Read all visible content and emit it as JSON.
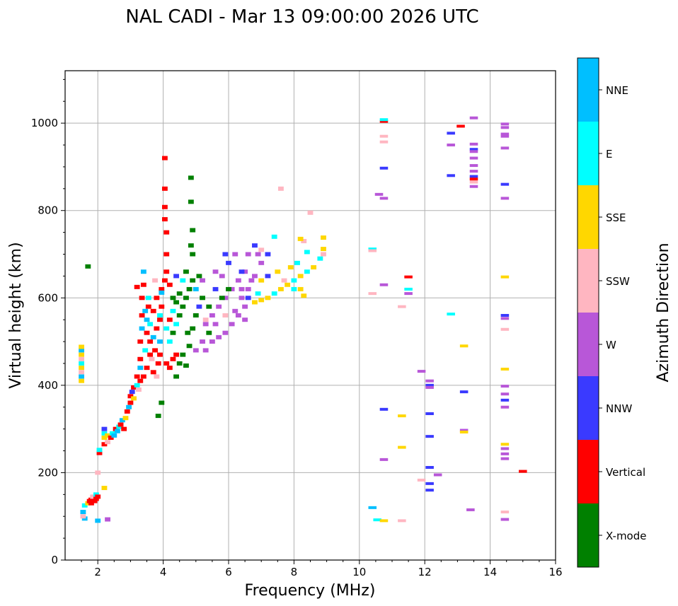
{
  "chart_data": {
    "type": "scatter",
    "title": "NAL CADI - Mar 13 09:00:00 2026 UTC",
    "xlabel": "Frequency (MHz)",
    "ylabel": "Virtual height (km)",
    "xlim": [
      1,
      16
    ],
    "ylim": [
      0,
      1120
    ],
    "xticks": [
      2,
      4,
      6,
      8,
      10,
      12,
      14,
      16
    ],
    "yticks": [
      0,
      200,
      400,
      600,
      800,
      1000
    ],
    "grid": true,
    "colorbar": {
      "label": "Azimuth Direction",
      "categories": [
        "X-mode",
        "Vertical",
        "NNW",
        "W",
        "SSW",
        "SSE",
        "E",
        "NNE"
      ],
      "colors": [
        "#008000",
        "#ff0000",
        "#3a3aff",
        "#b857d8",
        "#ffb6c1",
        "#ffd700",
        "#00ffff",
        "#00bfff"
      ]
    },
    "points_format": [
      "frequency_mhz",
      "height_km",
      "direction_index"
    ],
    "points": [
      [
        1.5,
        410,
        5
      ],
      [
        1.5,
        420,
        7
      ],
      [
        1.5,
        430,
        4
      ],
      [
        1.5,
        440,
        5
      ],
      [
        1.5,
        450,
        6
      ],
      [
        1.5,
        460,
        4
      ],
      [
        1.5,
        470,
        5
      ],
      [
        1.5,
        480,
        7
      ],
      [
        1.5,
        488,
        5
      ],
      [
        1.55,
        110,
        7
      ],
      [
        1.6,
        125,
        6
      ],
      [
        1.6,
        95,
        7
      ],
      [
        1.55,
        100,
        4
      ],
      [
        1.7,
        130,
        5
      ],
      [
        1.75,
        135,
        1
      ],
      [
        1.8,
        138,
        1
      ],
      [
        1.85,
        140,
        1
      ],
      [
        1.9,
        135,
        1
      ],
      [
        1.85,
        145,
        4
      ],
      [
        1.95,
        150,
        6
      ],
      [
        1.95,
        140,
        1
      ],
      [
        2.0,
        145,
        1
      ],
      [
        1.8,
        130,
        1
      ],
      [
        2.0,
        90,
        7
      ],
      [
        2.3,
        93,
        3
      ],
      [
        2.2,
        165,
        5
      ],
      [
        2.0,
        200,
        4
      ],
      [
        1.7,
        672,
        0
      ],
      [
        2.05,
        245,
        1
      ],
      [
        2.05,
        252,
        6
      ],
      [
        2.2,
        265,
        1
      ],
      [
        2.2,
        280,
        5
      ],
      [
        2.2,
        290,
        6
      ],
      [
        2.2,
        300,
        2
      ],
      [
        2.3,
        270,
        4
      ],
      [
        2.3,
        285,
        5
      ],
      [
        2.4,
        280,
        1
      ],
      [
        2.45,
        290,
        6
      ],
      [
        2.5,
        285,
        7
      ],
      [
        2.55,
        300,
        1
      ],
      [
        2.6,
        295,
        7
      ],
      [
        2.65,
        305,
        6
      ],
      [
        2.7,
        310,
        1
      ],
      [
        2.75,
        320,
        7
      ],
      [
        2.8,
        300,
        1
      ],
      [
        2.85,
        325,
        5
      ],
      [
        2.9,
        340,
        1
      ],
      [
        2.95,
        350,
        7
      ],
      [
        3.0,
        360,
        1
      ],
      [
        3.0,
        375,
        1
      ],
      [
        3.05,
        385,
        2
      ],
      [
        3.1,
        395,
        1
      ],
      [
        3.1,
        370,
        5
      ],
      [
        3.2,
        400,
        6
      ],
      [
        3.2,
        420,
        1
      ],
      [
        3.25,
        390,
        4
      ],
      [
        3.3,
        410,
        1
      ],
      [
        3.3,
        440,
        7
      ],
      [
        3.3,
        460,
        1
      ],
      [
        3.3,
        500,
        1
      ],
      [
        3.35,
        530,
        7
      ],
      [
        3.35,
        560,
        1
      ],
      [
        3.35,
        600,
        1
      ],
      [
        3.4,
        630,
        1
      ],
      [
        3.4,
        660,
        7
      ],
      [
        3.45,
        480,
        6
      ],
      [
        3.5,
        520,
        1
      ],
      [
        3.5,
        550,
        7
      ],
      [
        3.55,
        580,
        1
      ],
      [
        3.6,
        500,
        1
      ],
      [
        3.6,
        540,
        6
      ],
      [
        3.65,
        460,
        4
      ],
      [
        3.7,
        510,
        7
      ],
      [
        3.7,
        570,
        1
      ],
      [
        3.75,
        480,
        1
      ],
      [
        3.8,
        530,
        1
      ],
      [
        3.8,
        600,
        1
      ],
      [
        3.85,
        450,
        1
      ],
      [
        3.9,
        560,
        6
      ],
      [
        3.95,
        620,
        1
      ],
      [
        3.95,
        580,
        1
      ],
      [
        3.9,
        500,
        7
      ],
      [
        3.4,
        420,
        1
      ],
      [
        3.5,
        440,
        1
      ],
      [
        3.6,
        470,
        1
      ],
      [
        3.7,
        430,
        1
      ],
      [
        3.8,
        420,
        4
      ],
      [
        3.9,
        470,
        1
      ],
      [
        3.2,
        625,
        1
      ],
      [
        4.05,
        920,
        1
      ],
      [
        4.05,
        850,
        1
      ],
      [
        4.05,
        808,
        1
      ],
      [
        4.05,
        780,
        1
      ],
      [
        4.1,
        750,
        1
      ],
      [
        4.1,
        700,
        1
      ],
      [
        4.1,
        660,
        1
      ],
      [
        4.05,
        640,
        1
      ],
      [
        3.95,
        612,
        7
      ],
      [
        3.9,
        550,
        1
      ],
      [
        3.75,
        640,
        4
      ],
      [
        3.55,
        600,
        6
      ],
      [
        3.45,
        570,
        7
      ],
      [
        4.1,
        450,
        1
      ],
      [
        4.2,
        440,
        1
      ],
      [
        4.3,
        460,
        1
      ],
      [
        4.4,
        470,
        1
      ],
      [
        4.5,
        450,
        0
      ],
      [
        4.6,
        470,
        0
      ],
      [
        4.7,
        445,
        0
      ],
      [
        4.2,
        500,
        6
      ],
      [
        4.3,
        520,
        0
      ],
      [
        4.4,
        540,
        6
      ],
      [
        4.5,
        560,
        0
      ],
      [
        4.6,
        580,
        0
      ],
      [
        4.7,
        600,
        0
      ],
      [
        4.8,
        620,
        0
      ],
      [
        4.9,
        640,
        0
      ],
      [
        4.9,
        700,
        0
      ],
      [
        4.85,
        720,
        0
      ],
      [
        4.9,
        755,
        0
      ],
      [
        4.85,
        820,
        0
      ],
      [
        4.85,
        875,
        0
      ],
      [
        4.7,
        660,
        0
      ],
      [
        4.6,
        640,
        6
      ],
      [
        4.5,
        610,
        0
      ],
      [
        4.4,
        590,
        0
      ],
      [
        4.3,
        570,
        6
      ],
      [
        4.2,
        550,
        1
      ],
      [
        4.1,
        530,
        6
      ],
      [
        4.3,
        600,
        0
      ],
      [
        4.4,
        650,
        2
      ],
      [
        4.2,
        630,
        1
      ],
      [
        4.75,
        520,
        0
      ],
      [
        4.8,
        490,
        0
      ],
      [
        4.9,
        530,
        0
      ],
      [
        5.0,
        560,
        0
      ],
      [
        5.1,
        580,
        2
      ],
      [
        5.2,
        600,
        0
      ],
      [
        5.0,
        620,
        7
      ],
      [
        5.1,
        650,
        0
      ],
      [
        5.3,
        550,
        4
      ],
      [
        5.4,
        520,
        0
      ],
      [
        5.2,
        500,
        3
      ],
      [
        5.0,
        480,
        3
      ],
      [
        4.4,
        420,
        0
      ],
      [
        3.95,
        360,
        0
      ],
      [
        3.85,
        330,
        0
      ],
      [
        5.3,
        480,
        3
      ],
      [
        5.5,
        500,
        3
      ],
      [
        5.7,
        510,
        3
      ],
      [
        5.9,
        520,
        3
      ],
      [
        6.1,
        540,
        3
      ],
      [
        6.3,
        560,
        3
      ],
      [
        6.5,
        580,
        3
      ],
      [
        6.6,
        620,
        3
      ],
      [
        6.7,
        640,
        3
      ],
      [
        6.5,
        660,
        3
      ],
      [
        6.3,
        640,
        3
      ],
      [
        6.1,
        620,
        3
      ],
      [
        5.9,
        600,
        3
      ],
      [
        5.7,
        580,
        3
      ],
      [
        5.5,
        560,
        3
      ],
      [
        5.3,
        540,
        3
      ],
      [
        5.6,
        620,
        2
      ],
      [
        5.8,
        650,
        3
      ],
      [
        6.0,
        680,
        2
      ],
      [
        6.2,
        700,
        3
      ],
      [
        6.4,
        660,
        2
      ],
      [
        6.6,
        700,
        3
      ],
      [
        6.8,
        720,
        2
      ],
      [
        6.9,
        700,
        3
      ],
      [
        7.0,
        680,
        3
      ],
      [
        6.8,
        650,
        3
      ],
      [
        6.4,
        600,
        3
      ],
      [
        6.2,
        570,
        3
      ],
      [
        5.9,
        560,
        4
      ],
      [
        5.6,
        540,
        3
      ],
      [
        6.5,
        550,
        3
      ],
      [
        6.6,
        600,
        2
      ],
      [
        6.4,
        620,
        3
      ],
      [
        6.0,
        620,
        0
      ],
      [
        5.8,
        600,
        0
      ],
      [
        5.4,
        580,
        0
      ],
      [
        5.6,
        660,
        3
      ],
      [
        5.2,
        640,
        3
      ],
      [
        5.9,
        700,
        2
      ],
      [
        6.8,
        590,
        5
      ],
      [
        7.0,
        595,
        5
      ],
      [
        7.2,
        600,
        5
      ],
      [
        7.4,
        610,
        6
      ],
      [
        7.6,
        620,
        5
      ],
      [
        7.8,
        630,
        5
      ],
      [
        8.0,
        640,
        6
      ],
      [
        8.2,
        650,
        5
      ],
      [
        8.4,
        660,
        6
      ],
      [
        8.6,
        670,
        5
      ],
      [
        8.8,
        690,
        6
      ],
      [
        8.9,
        700,
        4
      ],
      [
        8.9,
        712,
        5
      ],
      [
        8.9,
        738,
        5
      ],
      [
        8.3,
        730,
        4
      ],
      [
        8.2,
        735,
        5
      ],
      [
        8.4,
        705,
        6
      ],
      [
        8.1,
        680,
        6
      ],
      [
        7.9,
        670,
        5
      ],
      [
        7.7,
        640,
        4
      ],
      [
        7.5,
        660,
        5
      ],
      [
        7.4,
        740,
        6
      ],
      [
        7.2,
        700,
        2
      ],
      [
        7.0,
        710,
        4
      ],
      [
        7.2,
        650,
        2
      ],
      [
        7.0,
        640,
        5
      ],
      [
        6.9,
        610,
        6
      ],
      [
        7.6,
        850,
        4
      ],
      [
        8.5,
        795,
        4
      ],
      [
        8.0,
        620,
        6
      ],
      [
        8.2,
        620,
        5
      ],
      [
        8.3,
        605,
        5
      ],
      [
        10.75,
        1004,
        1
      ],
      [
        10.75,
        1008,
        6
      ],
      [
        10.75,
        970,
        4
      ],
      [
        10.75,
        957,
        4
      ],
      [
        10.75,
        897,
        2
      ],
      [
        10.6,
        837,
        3
      ],
      [
        10.75,
        828,
        3
      ],
      [
        10.4,
        712,
        6
      ],
      [
        10.4,
        708,
        4
      ],
      [
        10.4,
        610,
        4
      ],
      [
        10.75,
        630,
        3
      ],
      [
        11.5,
        648,
        1
      ],
      [
        11.5,
        620,
        6
      ],
      [
        11.5,
        610,
        3
      ],
      [
        11.3,
        580,
        4
      ],
      [
        12.8,
        563,
        6
      ],
      [
        13.2,
        490,
        5
      ],
      [
        11.9,
        432,
        3
      ],
      [
        12.15,
        410,
        3
      ],
      [
        12.15,
        400,
        2
      ],
      [
        12.15,
        395,
        3
      ],
      [
        13.2,
        385,
        2
      ],
      [
        10.75,
        345,
        2
      ],
      [
        11.3,
        330,
        5
      ],
      [
        12.15,
        335,
        2
      ],
      [
        12.15,
        283,
        2
      ],
      [
        13.2,
        297,
        3
      ],
      [
        13.2,
        293,
        5
      ],
      [
        11.3,
        258,
        5
      ],
      [
        10.75,
        230,
        3
      ],
      [
        12.15,
        212,
        2
      ],
      [
        12.4,
        195,
        3
      ],
      [
        12.15,
        175,
        2
      ],
      [
        12.15,
        160,
        2
      ],
      [
        11.9,
        183,
        4
      ],
      [
        10.4,
        120,
        7
      ],
      [
        10.55,
        92,
        6
      ],
      [
        10.75,
        90,
        5
      ],
      [
        11.3,
        90,
        4
      ],
      [
        13.4,
        115,
        3
      ],
      [
        12.8,
        977,
        2
      ],
      [
        12.8,
        950,
        3
      ],
      [
        13.1,
        993,
        1
      ],
      [
        13.5,
        1012,
        3
      ],
      [
        13.5,
        952,
        3
      ],
      [
        13.5,
        940,
        2
      ],
      [
        13.5,
        935,
        3
      ],
      [
        13.5,
        920,
        3
      ],
      [
        13.5,
        903,
        3
      ],
      [
        13.5,
        890,
        3
      ],
      [
        13.5,
        878,
        2
      ],
      [
        13.5,
        872,
        1
      ],
      [
        13.5,
        865,
        4
      ],
      [
        13.5,
        855,
        3
      ],
      [
        12.8,
        880,
        2
      ],
      [
        14.45,
        998,
        3
      ],
      [
        14.45,
        990,
        3
      ],
      [
        14.45,
        975,
        3
      ],
      [
        14.45,
        970,
        3
      ],
      [
        14.45,
        943,
        3
      ],
      [
        14.45,
        860,
        2
      ],
      [
        14.45,
        828,
        3
      ],
      [
        14.45,
        648,
        5
      ],
      [
        14.45,
        560,
        2
      ],
      [
        14.45,
        553,
        3
      ],
      [
        14.45,
        528,
        4
      ],
      [
        14.45,
        437,
        5
      ],
      [
        14.45,
        398,
        3
      ],
      [
        14.45,
        380,
        3
      ],
      [
        14.45,
        366,
        2
      ],
      [
        14.45,
        350,
        3
      ],
      [
        14.45,
        265,
        5
      ],
      [
        14.45,
        255,
        3
      ],
      [
        14.45,
        243,
        3
      ],
      [
        14.45,
        232,
        3
      ],
      [
        14.45,
        110,
        4
      ],
      [
        14.45,
        93,
        3
      ],
      [
        15.0,
        203,
        1
      ]
    ]
  }
}
